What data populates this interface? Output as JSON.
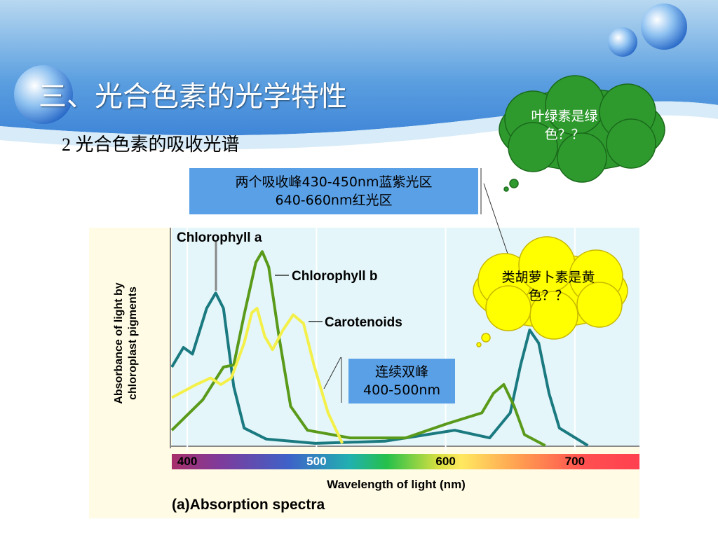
{
  "header": {
    "title": "三、光合色素的光学特性",
    "subtitle": "2 光合色素的吸收光谱"
  },
  "callouts": {
    "peaks": [
      "两个吸收峰430-450nm蓝紫光区",
      "640-660nm红光区"
    ],
    "chlorophyll_cloud": "叶绿素是绿色？？",
    "carotenoid_cloud": "类胡萝卜素是黄色？？",
    "double_peak": [
      "连续双峰",
      "400-500nm"
    ]
  },
  "chart_data": {
    "type": "line",
    "y_label": "Absorbance of light by chloroplast pigments",
    "x_label": "Wavelength of light (nm)",
    "caption": "(a)Absorption spectra",
    "xlim": [
      388,
      750
    ],
    "ylim": [
      0,
      1
    ],
    "xticks": [
      400,
      500,
      600,
      700
    ],
    "grid": true,
    "series": [
      {
        "name": "Chlorophyll a",
        "color": "#1a7a80",
        "x": [
          388,
          397,
          404,
          415,
          422,
          428,
          436,
          444,
          461,
          499,
          553,
          580,
          607,
          634,
          650,
          658,
          665,
          672,
          680,
          688,
          710
        ],
        "values": [
          0.36,
          0.45,
          0.42,
          0.63,
          0.7,
          0.63,
          0.27,
          0.08,
          0.03,
          0.01,
          0.02,
          0.045,
          0.07,
          0.035,
          0.15,
          0.37,
          0.53,
          0.47,
          0.24,
          0.08,
          0
        ]
      },
      {
        "name": "Chlorophyll b",
        "color": "#5a9a1a",
        "x": [
          388,
          412,
          428,
          436,
          444,
          453,
          458,
          463,
          471,
          480,
          493,
          526,
          569,
          601,
          628,
          637,
          645,
          653,
          661,
          677
        ],
        "values": [
          0.07,
          0.21,
          0.36,
          0.37,
          0.6,
          0.84,
          0.89,
          0.82,
          0.5,
          0.18,
          0.07,
          0.035,
          0.035,
          0.1,
          0.15,
          0.24,
          0.28,
          0.18,
          0.05,
          0
        ]
      },
      {
        "name": "Carotenoids",
        "color": "#f4f04a",
        "x": [
          388,
          407,
          418,
          426,
          434,
          444,
          450,
          454,
          460,
          466,
          474,
          482,
          490,
          498,
          509,
          520
        ],
        "values": [
          0.22,
          0.28,
          0.31,
          0.28,
          0.31,
          0.47,
          0.61,
          0.63,
          0.5,
          0.44,
          0.53,
          0.6,
          0.56,
          0.37,
          0.15,
          0.01
        ]
      }
    ]
  }
}
